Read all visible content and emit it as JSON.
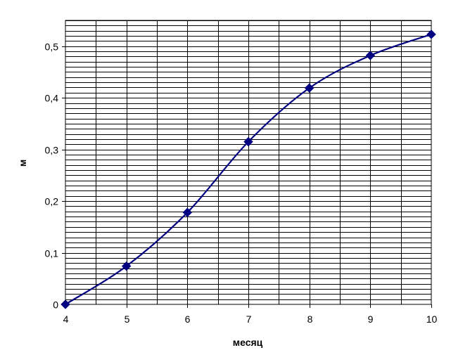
{
  "chart_data": {
    "type": "line",
    "xlabel": "месяц",
    "ylabel": "м",
    "x": [
      4,
      5,
      6,
      7,
      8,
      9,
      10
    ],
    "series": [
      {
        "values": [
          0,
          0.074,
          0.178,
          0.315,
          0.419,
          0.482,
          0.523
        ]
      }
    ],
    "xlim": [
      4,
      10
    ],
    "ylim": [
      0,
      0.55
    ],
    "x_ticks": [
      "4",
      "5",
      "6",
      "7",
      "8",
      "9",
      "10"
    ],
    "y_ticks": [
      "0",
      "0,1",
      "0,2",
      "0,3",
      "0,4",
      "0,5"
    ],
    "grid": true,
    "marker": "diamond",
    "colors": {
      "line": "#000080",
      "grid": "#000000",
      "background": "#ffffff"
    }
  }
}
